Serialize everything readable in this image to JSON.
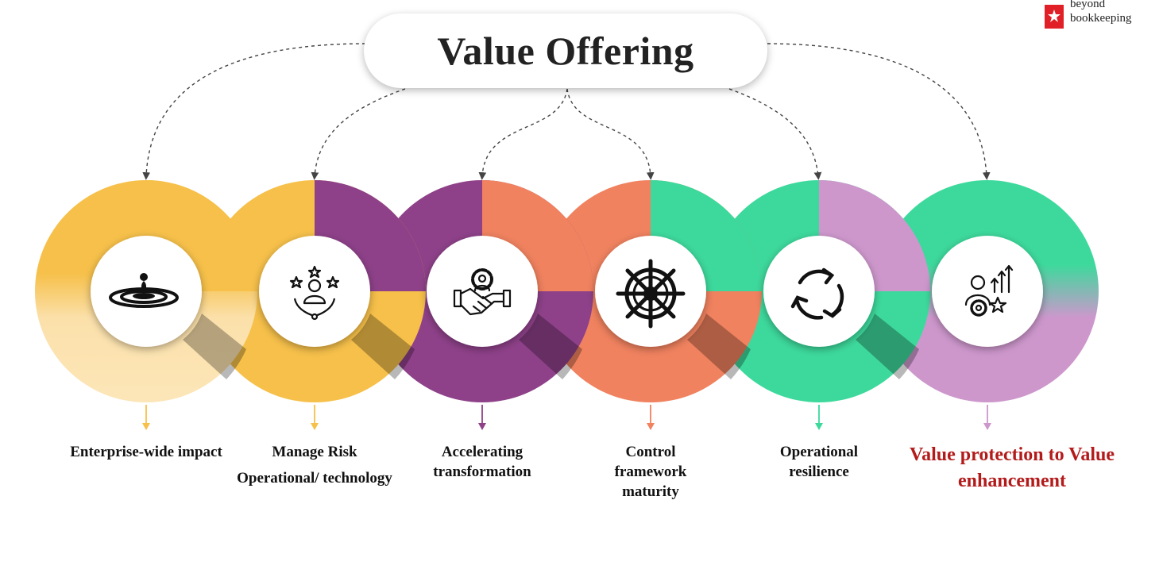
{
  "title": "Value Offering",
  "logo": {
    "line1": "beyond",
    "line2": "bookkeeping"
  },
  "items": [
    {
      "label": "Enterprise-wide impact",
      "color": "#F6C04A",
      "icon": "water-drop-ripple-icon"
    },
    {
      "label": "Manage Risk",
      "sublabel": "Operational/ technology",
      "color": "#8E4189",
      "icon": "person-with-stars-icon"
    },
    {
      "label": "Accelerating transformation",
      "color": "#F0825F",
      "icon": "handshake-gear-icon"
    },
    {
      "label": "Control framework maturity",
      "color": "#3DD99C",
      "icon": "ship-wheel-icon"
    },
    {
      "label": "Operational resilience",
      "color": "#CD97CC",
      "icon": "refresh-cycle-icon"
    },
    {
      "label": "Value protection to Value enhancement",
      "color": "#B31B1B",
      "icon": "person-gear-growth-icon"
    }
  ],
  "colors": {
    "yellow": "#F6C04A",
    "purple": "#8E4189",
    "coral": "#F0825F",
    "green": "#3DD99C",
    "lilac": "#CD97CC",
    "accent_red": "#B31B1B",
    "dashed": "#444444"
  }
}
